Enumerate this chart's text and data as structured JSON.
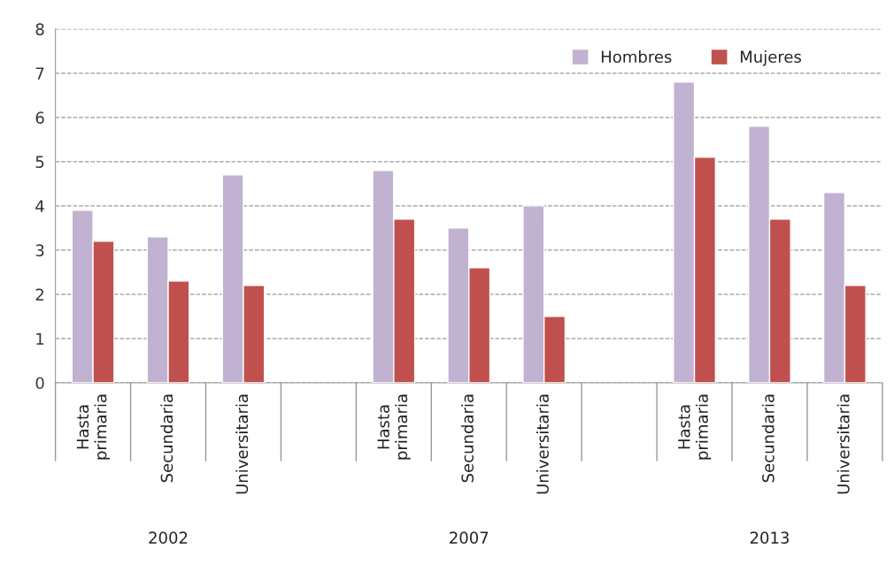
{
  "chart_data": {
    "type": "bar",
    "categories": [
      "Hasta\nprimaria",
      "Secundaria",
      "Universitaria",
      null,
      "Hasta\nprimaria",
      "Secundaria",
      "Universitaria",
      null,
      "Hasta\nprimaria",
      "Secundaria",
      "Universitaria"
    ],
    "series": [
      {
        "name": "Hombres",
        "color": "#c0b2d0",
        "values": [
          3.9,
          3.3,
          4.7,
          null,
          4.8,
          3.5,
          4.0,
          null,
          6.8,
          5.8,
          4.3
        ]
      },
      {
        "name": "Mujeres",
        "color": "#c0504d",
        "values": [
          3.2,
          2.3,
          2.2,
          null,
          3.7,
          2.6,
          1.5,
          null,
          5.1,
          3.7,
          2.2
        ]
      }
    ],
    "ylim": [
      0,
      8
    ],
    "yticks": [
      0,
      1,
      2,
      3,
      4,
      5,
      6,
      7,
      8
    ],
    "grid": "y",
    "legend": "top right",
    "annotations": [
      "2002",
      "2007",
      "2013"
    ]
  }
}
